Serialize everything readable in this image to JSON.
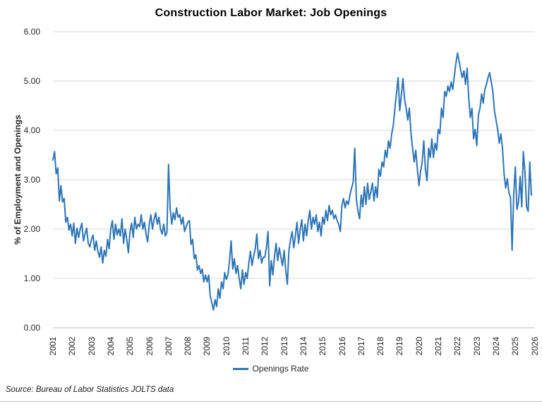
{
  "source_note": "Source: Bureau of Labor Statistics JOLTS data",
  "colors": {
    "line": "#2E75B6",
    "gridline": "#D9D9D9",
    "axis": "#BFBFBF",
    "text": "#262626"
  },
  "chart_data": {
    "type": "line",
    "title": "Construction Labor Market: Job Openings",
    "xlabel": "",
    "ylabel": "% of Employment and Openings",
    "ylim": [
      0,
      6
    ],
    "y_ticks": [
      "0.00",
      "1.00",
      "2.00",
      "3.00",
      "4.00",
      "5.00",
      "6.00"
    ],
    "x_ticks": [
      2001,
      2002,
      2003,
      2004,
      2005,
      2006,
      2007,
      2008,
      2009,
      2010,
      2011,
      2012,
      2013,
      2014,
      2015,
      2016,
      2017,
      2018,
      2019,
      2020,
      2021,
      2022,
      2023,
      2024,
      2025,
      2026
    ],
    "grid": "horizontal",
    "legend_position": "bottom",
    "x_start": "2001-01",
    "x_frequency": "monthly",
    "x_end": "2025-11",
    "series": [
      {
        "name": "Openings Rate",
        "monthly_values": [
          3.4,
          3.57,
          3.12,
          3.24,
          2.57,
          2.88,
          2.55,
          2.62,
          2.14,
          2.24,
          1.98,
          2.1,
          1.86,
          2.12,
          1.71,
          2.02,
          1.83,
          2.0,
          2.12,
          1.76,
          1.9,
          2.02,
          1.71,
          1.64,
          1.79,
          1.88,
          1.57,
          1.76,
          1.55,
          1.43,
          1.64,
          1.31,
          1.57,
          1.45,
          1.79,
          1.6,
          2.0,
          2.17,
          1.79,
          2.1,
          1.88,
          2.0,
          1.86,
          2.21,
          1.71,
          2.0,
          1.79,
          1.52,
          1.95,
          2.12,
          1.83,
          2.24,
          2.0,
          2.1,
          2.05,
          2.29,
          2.0,
          2.14,
          1.9,
          1.74,
          2.1,
          2.29,
          2.0,
          2.19,
          2.33,
          2.1,
          2.24,
          2.0,
          1.9,
          2.1,
          1.86,
          1.93,
          3.31,
          2.43,
          2.1,
          2.33,
          2.19,
          2.43,
          2.24,
          2.29,
          2.1,
          2.24,
          1.95,
          2.05,
          2.14,
          2.17,
          1.69,
          1.79,
          1.4,
          1.48,
          1.17,
          1.26,
          1.1,
          1.19,
          0.93,
          1.07,
          0.93,
          1.07,
          0.64,
          0.5,
          0.36,
          0.57,
          0.43,
          0.79,
          0.6,
          0.93,
          0.79,
          1.12,
          0.98,
          1.07,
          1.36,
          1.76,
          1.19,
          1.4,
          1.1,
          1.26,
          1.0,
          0.79,
          1.17,
          0.88,
          1.12,
          1.0,
          1.31,
          1.55,
          1.26,
          1.45,
          1.6,
          1.9,
          1.4,
          1.57,
          1.31,
          1.43,
          1.43,
          1.64,
          1.95,
          0.85,
          1.36,
          1.07,
          1.45,
          1.71,
          1.36,
          1.62,
          1.43,
          1.26,
          1.57,
          1.17,
          0.88,
          1.57,
          1.79,
          1.95,
          1.62,
          1.86,
          2.14,
          1.71,
          2.0,
          2.19,
          1.76,
          2.1,
          1.86,
          2.17,
          2.38,
          2.0,
          2.24,
          2.1,
          2.29,
          1.95,
          2.14,
          1.86,
          2.24,
          2.1,
          2.38,
          2.17,
          2.48,
          2.29,
          2.38,
          2.21,
          2.29,
          2.17,
          2.1,
          1.95,
          2.48,
          2.62,
          2.43,
          2.57,
          2.5,
          2.69,
          2.83,
          2.95,
          3.64,
          2.6,
          2.36,
          2.21,
          2.69,
          2.45,
          2.86,
          2.5,
          2.93,
          2.6,
          2.76,
          2.93,
          2.57,
          2.86,
          2.64,
          3.21,
          3.07,
          3.36,
          3.26,
          3.6,
          3.45,
          3.79,
          3.64,
          3.93,
          4.1,
          4.45,
          4.76,
          5.07,
          4.4,
          4.71,
          5.05,
          4.64,
          4.45,
          4.21,
          4.45,
          3.95,
          3.64,
          3.36,
          3.6,
          3.21,
          2.88,
          3.17,
          3.36,
          3.79,
          3.21,
          2.98,
          3.64,
          3.45,
          3.83,
          3.45,
          3.74,
          3.6,
          4.02,
          3.93,
          4.45,
          4.26,
          4.79,
          4.69,
          4.9,
          4.79,
          4.98,
          4.83,
          5.1,
          5.36,
          5.57,
          5.4,
          5.21,
          5.07,
          5.21,
          4.93,
          5.26,
          4.64,
          4.26,
          4.45,
          3.83,
          4.02,
          3.69,
          4.31,
          4.45,
          4.74,
          4.55,
          4.83,
          4.93,
          5.07,
          5.17,
          4.98,
          4.79,
          4.4,
          4.21,
          4.02,
          3.74,
          3.93,
          3.64,
          3.12,
          2.83,
          3.02,
          2.74,
          2.64,
          1.57,
          2.69,
          3.26,
          2.4,
          2.55,
          3.07,
          2.45,
          3.57,
          3.17,
          2.45,
          2.36,
          3.36,
          2.69
        ]
      }
    ]
  }
}
